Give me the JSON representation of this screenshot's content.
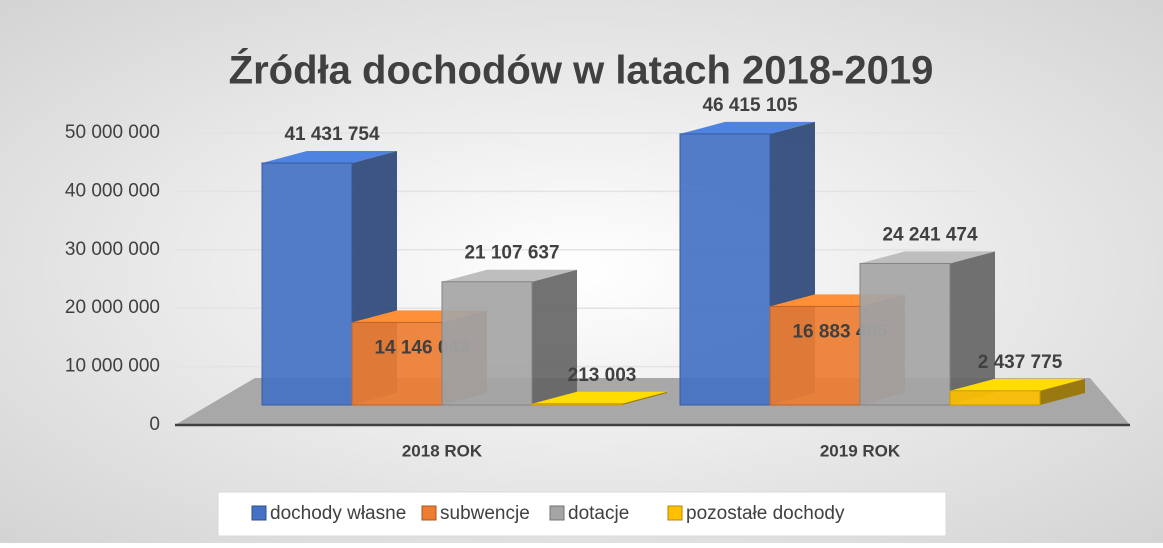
{
  "chart_data": {
    "type": "bar3d",
    "title": "Źródła dochodów w latach 2018-2019",
    "categories": [
      "2018 ROK",
      "2019 ROK"
    ],
    "series": [
      {
        "name": "dochody własne",
        "color": "#4472c4",
        "values": [
          41431754,
          46415105
        ],
        "value_labels": [
          "41 431 754",
          "46 415 105"
        ]
      },
      {
        "name": "subwencje",
        "color": "#ed7d31",
        "values": [
          14146043,
          16883485
        ],
        "value_labels": [
          "14 146 043",
          "16 883 485"
        ]
      },
      {
        "name": "dotacje",
        "color": "#a5a5a5",
        "values": [
          21107637,
          24241474
        ],
        "value_labels": [
          "21 107 637",
          "24 241 474"
        ]
      },
      {
        "name": "pozostałe dochody",
        "color": "#ffc000",
        "values": [
          213003,
          2437775
        ],
        "value_labels": [
          "213 003",
          "2 437 775"
        ]
      }
    ],
    "ylim": [
      0,
      50000000
    ],
    "yticks": [
      0,
      {
        "value": 10000000,
        "label": "10 000 000"
      },
      {
        "value": 20000000,
        "label": "20 000 000"
      },
      {
        "value": 30000000,
        "label": "30 000 000"
      },
      {
        "value": 40000000,
        "label": "40 000 000"
      },
      {
        "value": 50000000,
        "label": "50 000 000"
      }
    ],
    "grid": true,
    "legend": "bottom"
  }
}
